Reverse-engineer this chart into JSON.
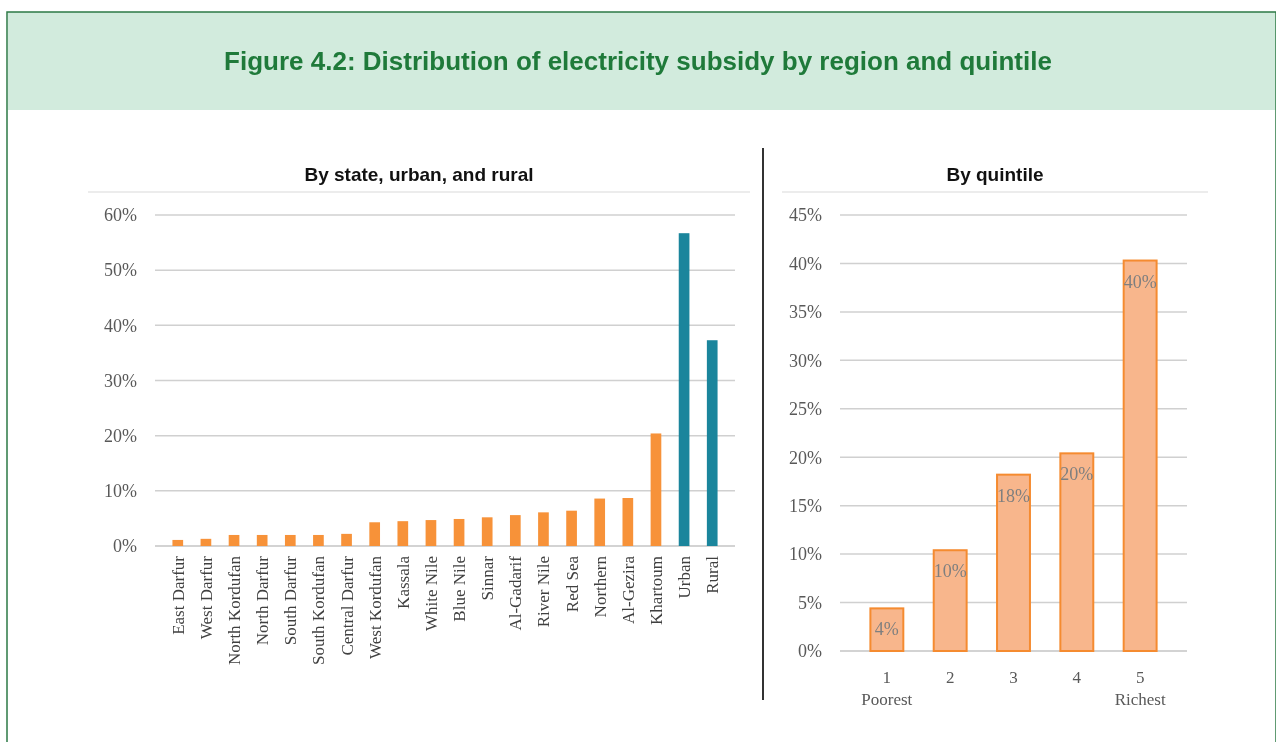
{
  "chart_data": [
    {
      "type": "bar",
      "title": "Figure 4.2: Distribution of electricity subsidy by region and quintile",
      "subtitle": "By state, urban, and rural",
      "categories": [
        "East Darfur",
        "West Darfur",
        "North Kordufan",
        "North Darfur",
        "South Darfur",
        "South Kordufan",
        "Central Darfur",
        "West Kordufan",
        "Kassala",
        "White Nile",
        "Blue Nile",
        "Sinnar",
        "Al-Gadarif",
        "River Nile",
        "Red Sea",
        "Northern",
        "Al-Gezira",
        "Khartoum",
        "Urban",
        "Rural"
      ],
      "values": [
        1.1,
        1.3,
        2.0,
        2.0,
        2.0,
        2.0,
        2.2,
        4.3,
        4.5,
        4.7,
        4.9,
        5.2,
        5.6,
        6.1,
        6.4,
        8.6,
        8.7,
        20.4,
        56.7,
        37.3
      ],
      "colors": [
        "#f79239",
        "#f79239",
        "#f79239",
        "#f79239",
        "#f79239",
        "#f79239",
        "#f79239",
        "#f79239",
        "#f79239",
        "#f79239",
        "#f79239",
        "#f79239",
        "#f79239",
        "#f79239",
        "#f79239",
        "#f79239",
        "#f79239",
        "#f79239",
        "#1a859c",
        "#1a859c"
      ],
      "ylim": [
        0,
        60
      ],
      "yticks": [
        {
          "value": 0,
          "label": "0%"
        },
        {
          "value": 10,
          "label": "10%"
        },
        {
          "value": 20,
          "label": "20%"
        },
        {
          "value": 30,
          "label": "30%"
        },
        {
          "value": 40,
          "label": "40%"
        },
        {
          "value": 50,
          "label": "50%"
        },
        {
          "value": 60,
          "label": "60%"
        }
      ],
      "grid": "y"
    },
    {
      "type": "bar",
      "title": "By quintile",
      "categories": [
        "1\nPoorest",
        "2",
        "3",
        "4",
        "5\nRichest"
      ],
      "values": [
        4.4,
        10.4,
        18.2,
        20.4,
        40.3
      ],
      "value_labels": [
        "4%",
        "10%",
        "18%",
        "20%",
        "40%"
      ],
      "color": "#f8b68c",
      "ylim": [
        0,
        45
      ],
      "yticks": [
        {
          "value": 0,
          "label": "0%"
        },
        {
          "value": 5,
          "label": "5%"
        },
        {
          "value": 10,
          "label": "10%"
        },
        {
          "value": 15,
          "label": "15%"
        },
        {
          "value": 20,
          "label": "20%"
        },
        {
          "value": 25,
          "label": "25%"
        },
        {
          "value": 30,
          "label": "30%"
        },
        {
          "value": 35,
          "label": "35%"
        },
        {
          "value": 40,
          "label": "40%"
        },
        {
          "value": 45,
          "label": "45%"
        }
      ],
      "grid": "y"
    }
  ]
}
